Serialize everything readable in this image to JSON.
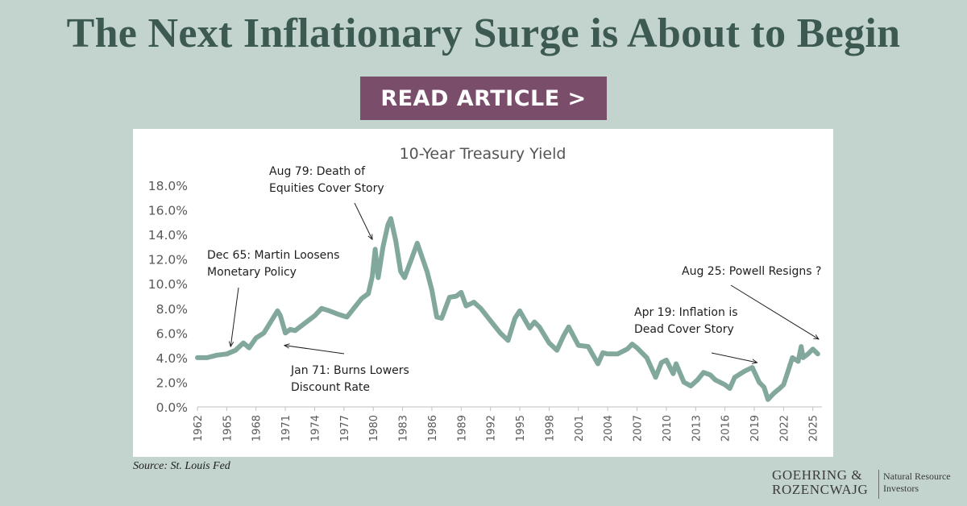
{
  "header": {
    "title": "The Next Inflationary Surge is About to Begin",
    "cta_label": "READ ARTICLE >"
  },
  "colors": {
    "background": "#c3d4cf",
    "title": "#3d5a52",
    "cta": "#7a4e6b",
    "series": "#82a89d"
  },
  "chart_data": {
    "type": "line",
    "title": "10-Year Treasury Yield",
    "xlabel": "",
    "ylabel": "",
    "xlim": [
      1962,
      2025.6
    ],
    "ylim": [
      0,
      18
    ],
    "grid": false,
    "legend": "none",
    "y_ticks": [
      "0.0%",
      "2.0%",
      "4.0%",
      "6.0%",
      "8.0%",
      "10.0%",
      "12.0%",
      "14.0%",
      "16.0%",
      "18.0%"
    ],
    "x_ticks": [
      "1962",
      "1965",
      "1968",
      "1971",
      "1974",
      "1977",
      "1980",
      "1983",
      "1986",
      "1989",
      "1992",
      "1995",
      "1998",
      "2001",
      "2004",
      "2007",
      "2010",
      "2013",
      "2016",
      "2019",
      "2022",
      "2025"
    ],
    "series": [
      {
        "x": [
          1962.0,
          1963.0,
          1964.0,
          1965.0,
          1965.9,
          1966.7,
          1967.3,
          1968.0,
          1968.8,
          1969.5,
          1970.2,
          1970.5,
          1971.0,
          1971.5,
          1972.0,
          1973.0,
          1974.0,
          1974.7,
          1975.5,
          1976.5,
          1977.3,
          1978.0,
          1978.8,
          1979.5,
          1979.9,
          1980.2,
          1980.5,
          1981.0,
          1981.5,
          1981.8,
          1982.3,
          1982.8,
          1983.2,
          1984.0,
          1984.5,
          1985.5,
          1986.0,
          1986.5,
          1987.0,
          1987.8,
          1988.5,
          1989.0,
          1989.5,
          1990.3,
          1991.0,
          1992.0,
          1993.0,
          1993.8,
          1994.5,
          1995.0,
          1996.0,
          1996.5,
          1997.0,
          1998.0,
          1998.8,
          1999.5,
          2000.0,
          2001.0,
          2002.0,
          2003.0,
          2003.5,
          2004.0,
          2005.0,
          2006.0,
          2006.5,
          2007.0,
          2008.0,
          2008.9,
          2009.5,
          2010.0,
          2010.7,
          2011.0,
          2011.8,
          2012.5,
          2013.2,
          2013.8,
          2014.5,
          2015.0,
          2016.0,
          2016.5,
          2017.0,
          2018.0,
          2018.8,
          2019.5,
          2020.0,
          2020.4,
          2021.0,
          2021.6,
          2022.0,
          2022.5,
          2022.9,
          2023.5,
          2023.8,
          2024.0,
          2024.5,
          2025.0,
          2025.5
        ],
        "y": [
          4.0,
          4.0,
          4.2,
          4.3,
          4.6,
          5.2,
          4.8,
          5.6,
          6.0,
          6.9,
          7.8,
          7.4,
          6.0,
          6.3,
          6.2,
          6.8,
          7.4,
          8.0,
          7.8,
          7.5,
          7.3,
          8.0,
          8.8,
          9.2,
          10.6,
          12.8,
          10.5,
          13.0,
          14.8,
          15.3,
          13.5,
          11.0,
          10.5,
          12.2,
          13.3,
          11.0,
          9.5,
          7.3,
          7.2,
          8.9,
          9.0,
          9.3,
          8.2,
          8.5,
          8.0,
          7.0,
          6.0,
          5.4,
          7.2,
          7.8,
          6.4,
          6.9,
          6.5,
          5.2,
          4.6,
          5.8,
          6.5,
          5.0,
          4.9,
          3.5,
          4.4,
          4.3,
          4.3,
          4.7,
          5.1,
          4.8,
          4.0,
          2.4,
          3.6,
          3.8,
          2.7,
          3.5,
          2.0,
          1.7,
          2.2,
          2.8,
          2.6,
          2.2,
          1.8,
          1.5,
          2.4,
          2.9,
          3.2,
          2.0,
          1.6,
          0.6,
          1.1,
          1.5,
          1.8,
          3.0,
          4.0,
          3.7,
          4.9,
          4.0,
          4.3,
          4.7,
          4.3
        ]
      }
    ],
    "annotations": [
      {
        "lines": [
          "Aug 79: Death of",
          "Equities Cover Story"
        ],
        "target_x": 1979.9,
        "target_y": 13.6
      },
      {
        "lines": [
          "Dec 65: Martin Loosens",
          "Monetary Policy"
        ],
        "target_x": 1965.4,
        "target_y": 4.9
      },
      {
        "lines": [
          "Jan 71: Burns Lowers",
          "Discount Rate"
        ],
        "target_x": 1970.9,
        "target_y": 5.0
      },
      {
        "lines": [
          "Apr 19: Inflation is",
          "Dead Cover Story"
        ],
        "target_x": 2019.3,
        "target_y": 3.6
      },
      {
        "lines": [
          "Aug 25: Powell Resigns ?"
        ],
        "target_x": 2025.6,
        "target_y": 5.5
      }
    ],
    "source": "Source: St. Louis Fed"
  },
  "brand": {
    "mark_line1": "GOEHRING &",
    "mark_line2": "ROZENCWAJG",
    "tag_line1": "Natural Resource",
    "tag_line2": "Investors"
  }
}
